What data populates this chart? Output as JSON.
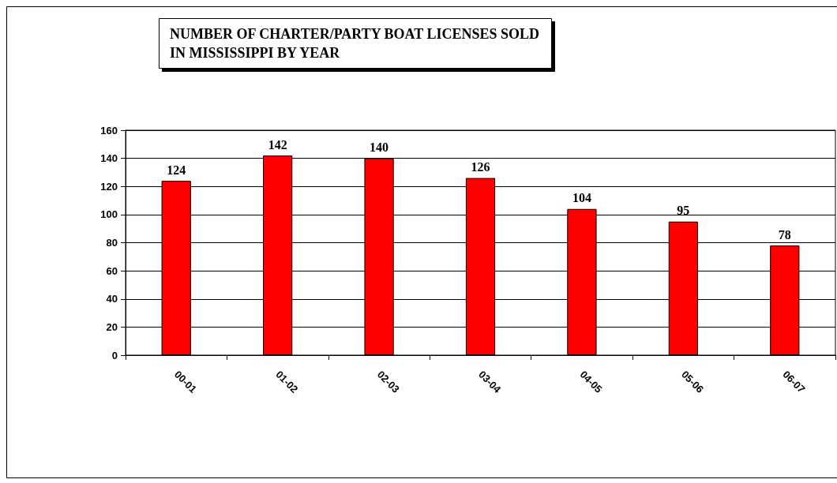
{
  "chart_data": {
    "type": "bar",
    "title": "NUMBER OF CHARTER/PARTY BOAT LICENSES SOLD\nIN MISSISSIPPI BY YEAR",
    "categories": [
      "00-01",
      "01-02",
      "02-03",
      "03-04",
      "04-05",
      "05-06",
      "06-07"
    ],
    "values": [
      124,
      142,
      140,
      126,
      104,
      95,
      78
    ],
    "color": "#ff0000",
    "ylim": [
      0,
      160
    ],
    "yticks": [
      0,
      20,
      40,
      60,
      80,
      100,
      120,
      140,
      160
    ],
    "grid": "y",
    "data_labels": true
  }
}
